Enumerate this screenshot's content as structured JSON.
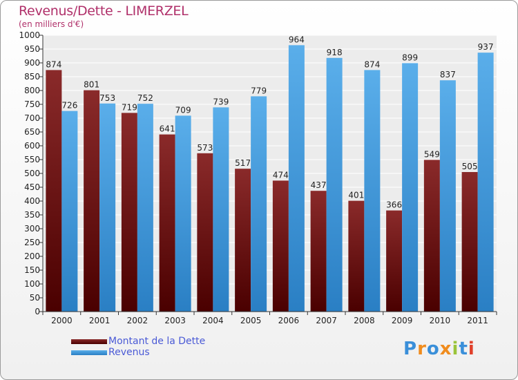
{
  "chart_data": {
    "type": "bar",
    "title": "Revenus/Dette - LIMERZEL",
    "subtitle": "(en milliers d'€)",
    "categories": [
      "2000",
      "2001",
      "2002",
      "2003",
      "2004",
      "2005",
      "2006",
      "2007",
      "2008",
      "2009",
      "2010",
      "2011"
    ],
    "series": [
      {
        "name": "Montant de la Dette",
        "color": "#7a1a1a",
        "values": [
          874,
          801,
          719,
          641,
          573,
          517,
          474,
          437,
          401,
          366,
          549,
          505
        ]
      },
      {
        "name": "Revenus",
        "color": "#3f97dc",
        "values": [
          726,
          753,
          752,
          709,
          739,
          779,
          964,
          918,
          874,
          899,
          837,
          937
        ]
      }
    ],
    "ylim": [
      0,
      1000
    ],
    "yticks": [
      0,
      50,
      100,
      150,
      200,
      250,
      300,
      350,
      400,
      450,
      500,
      550,
      600,
      650,
      700,
      750,
      800,
      850,
      900,
      950,
      1000
    ],
    "grid": true,
    "legend_position": "bottom-left",
    "data_labels": true
  },
  "logo": {
    "letters": [
      "P",
      "r",
      "o",
      "x",
      "i",
      "t",
      "i"
    ],
    "colors": [
      "#3a8fd9",
      "#f08c1e",
      "#3a8fd9",
      "#f08c1e",
      "#9ac43a",
      "#3a8fd9",
      "#e0402a"
    ]
  }
}
